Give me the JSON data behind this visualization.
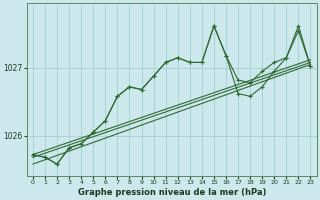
{
  "title": "Graphe pression niveau de la mer (hPa)",
  "bg_color": "#cce8ec",
  "grid_color": "#99cccc",
  "line_color": "#2d6a2d",
  "spine_color": "#5a8a5a",
  "xlim": [
    -0.5,
    23.5
  ],
  "ylim": [
    1025.4,
    1027.95
  ],
  "yticks": [
    1026,
    1027
  ],
  "xticks": [
    0,
    1,
    2,
    3,
    4,
    5,
    6,
    7,
    8,
    9,
    10,
    11,
    12,
    13,
    14,
    15,
    16,
    17,
    18,
    19,
    20,
    21,
    22,
    23
  ],
  "figsize": [
    3.2,
    2.0
  ],
  "dpi": 100,
  "series": {
    "obs1": [
      1025.72,
      1025.68,
      1025.58,
      1025.82,
      1025.88,
      1026.05,
      1026.22,
      1026.58,
      1026.72,
      1026.68,
      1026.88,
      1027.08,
      1027.15,
      1027.08,
      1027.08,
      1027.62,
      1027.18,
      1026.82,
      1026.78,
      1026.95,
      1027.08,
      1027.15,
      1027.62,
      1027.02
    ],
    "obs2": [
      1025.72,
      1025.68,
      1025.58,
      1025.82,
      1025.88,
      1026.05,
      1026.22,
      1026.58,
      1026.72,
      1026.68,
      1026.88,
      1027.08,
      1027.15,
      1027.08,
      1027.08,
      1027.62,
      1027.18,
      1026.62,
      1026.58,
      1026.72,
      1026.95,
      1027.15,
      1027.55,
      1027.02
    ],
    "trend1_x": [
      0,
      23
    ],
    "trend1_y": [
      1025.72,
      1027.12
    ],
    "trend2_x": [
      0,
      23
    ],
    "trend2_y": [
      1025.68,
      1027.08
    ],
    "trend3_x": [
      0,
      23
    ],
    "trend3_y": [
      1025.58,
      1027.05
    ]
  }
}
